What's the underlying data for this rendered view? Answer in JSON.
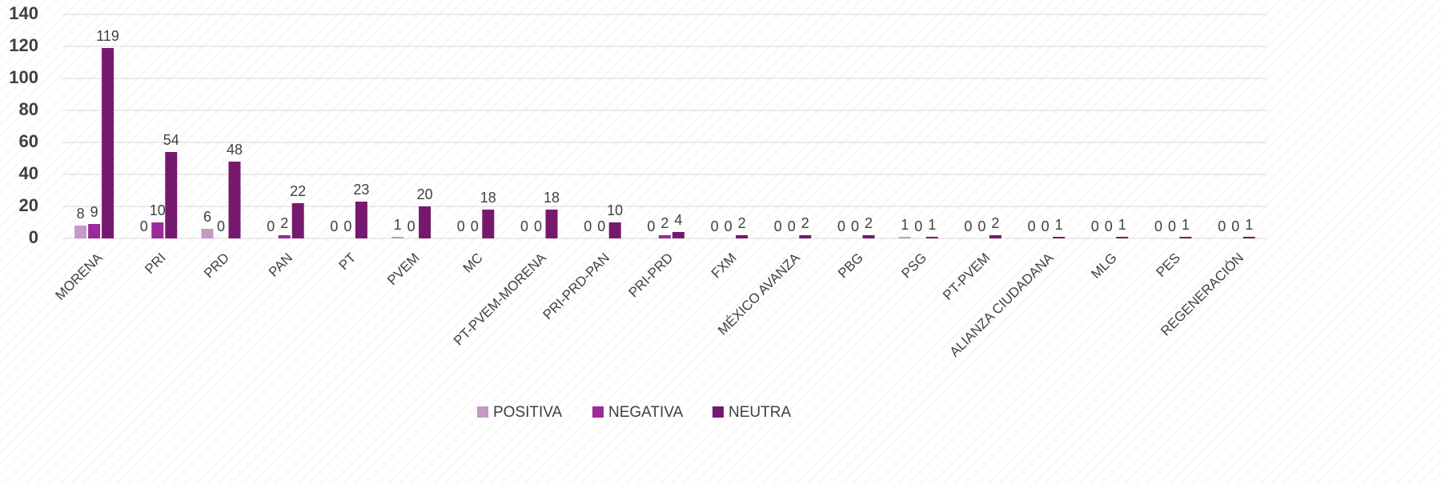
{
  "chart_data": {
    "type": "bar",
    "categories": [
      "MORENA",
      "PRI",
      "PRD",
      "PAN",
      "PT",
      "PVEM",
      "MC",
      "PT-PVEM-MORENA",
      "PRI-PRD-PAN",
      "PRI-PRD",
      "FXM",
      "MÉXICO AVANZA",
      "PBG",
      "PSG",
      "PT-PVEM",
      "ALIANZA CIUDADANA",
      "MLG",
      "PES",
      "REGENERACIÓN"
    ],
    "series": [
      {
        "name": "POSITIVA",
        "color": "#c49ac6",
        "values": [
          8,
          0,
          6,
          0,
          0,
          1,
          0,
          0,
          0,
          0,
          0,
          0,
          0,
          1,
          0,
          0,
          0,
          0,
          0
        ]
      },
      {
        "name": "NEGATIVA",
        "color": "#9a2b98",
        "values": [
          9,
          10,
          0,
          2,
          0,
          0,
          0,
          0,
          0,
          2,
          0,
          0,
          0,
          0,
          0,
          0,
          0,
          0,
          0
        ]
      },
      {
        "name": "NEUTRA",
        "color": "#76196e",
        "values": [
          119,
          54,
          48,
          22,
          23,
          20,
          18,
          18,
          10,
          4,
          2,
          2,
          2,
          1,
          2,
          1,
          1,
          1,
          1
        ]
      }
    ],
    "ylim": [
      0,
      140
    ],
    "yticks": [
      0,
      20,
      40,
      60,
      80,
      100,
      120,
      140
    ],
    "grid": true,
    "legend": "bottom"
  }
}
